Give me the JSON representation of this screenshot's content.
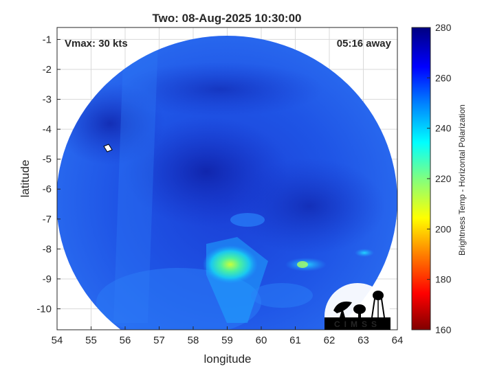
{
  "title": "Two: 08-Aug-2025 10:30:00",
  "vmax_label": "Vmax: 30 kts",
  "time_label": "05:16 away",
  "xlabel": "longitude",
  "ylabel": "latitude",
  "colorbar_label": "Brightness Temp - Horizontal Polarization",
  "logo_text": "CIMSS",
  "xticks": [
    "54",
    "55",
    "56",
    "57",
    "58",
    "59",
    "60",
    "61",
    "62",
    "63",
    "64"
  ],
  "yticks": [
    "-1",
    "-2",
    "-3",
    "-4",
    "-5",
    "-6",
    "-7",
    "-8",
    "-9",
    "-10"
  ],
  "cbticks": [
    "280",
    "260",
    "240",
    "220",
    "200",
    "180",
    "160"
  ],
  "chart_data": {
    "type": "heatmap",
    "title": "Two: 08-Aug-2025 10:30:00",
    "xlabel": "longitude",
    "ylabel": "latitude",
    "xlim": [
      54,
      64
    ],
    "ylim": [
      -10.7,
      -0.6
    ],
    "color_range": [
      160,
      280
    ],
    "colorbar_label": "Brightness Temp - Horizontal Polarization",
    "swath_center": [
      59.0,
      -5.8
    ],
    "grid": true,
    "warm_regions": [
      {
        "lon": 59.1,
        "lat": -8.6,
        "approx_temp": 225
      },
      {
        "lon": 61.6,
        "lat": -8.6,
        "approx_temp": 230
      }
    ],
    "storm_center_marker": {
      "lon": 55.5,
      "lat": -4.7
    }
  }
}
